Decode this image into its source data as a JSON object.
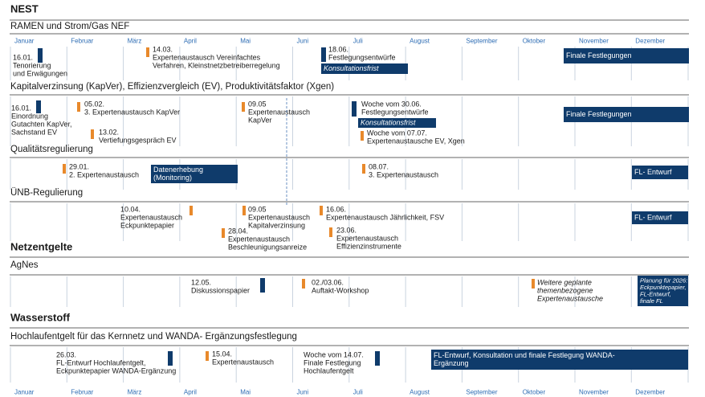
{
  "months": [
    "Januar",
    "Februar",
    "März",
    "April",
    "Mai",
    "Juni",
    "Juli",
    "August",
    "September",
    "Oktober",
    "November",
    "Dezember"
  ],
  "sections": [
    {
      "title": "NEST",
      "groups": [
        {
          "title": "RAMEN und Strom/Gas NEF",
          "items": [
            {
              "lines": [
                "16.01.",
                "Tenorierung",
                "und Erwägungen"
              ]
            },
            {
              "lines": [
                "14.03.",
                "Expertenaustausch Vereinfachtes",
                "Verfahren, Kleinstnetzbetreiberregelung"
              ]
            },
            {
              "lines": [
                "18.06.",
                "Festlegungsentwürfe"
              ]
            }
          ],
          "boxes": [
            {
              "lines": [
                "Konsultationsfrist"
              ]
            },
            {
              "lines": [
                "Finale Festlegungen"
              ]
            }
          ]
        },
        {
          "title": "Kapitalverzinsung  (KapVer), Effizienzvergleich  (EV), Produktivitätsfaktor (Xgen)",
          "items": [
            {
              "lines": [
                "16.01.",
                "Einordnung",
                "Gutachten KapVer,",
                "Sachstand EV"
              ]
            },
            {
              "lines": [
                "05.02.",
                "3. Expertenaustausch KapVer"
              ]
            },
            {
              "lines": [
                "13.02.",
                "Vertiefungsgespräch EV"
              ]
            },
            {
              "lines": [
                "09.05",
                "Expertenaustausch",
                "KapVer"
              ]
            },
            {
              "lines": [
                "Woche vom 30.06.",
                "Festlegungsentwürfe"
              ]
            },
            {
              "lines": [
                "Woche vom 07.07.",
                "Expertenaustausche EV, Xgen"
              ]
            }
          ],
          "boxes": [
            {
              "lines": [
                "Konsultationsfrist"
              ]
            },
            {
              "lines": [
                "Finale Festlegungen"
              ]
            }
          ]
        },
        {
          "title": "Qualitätsregulierung",
          "items": [
            {
              "lines": [
                "29.01.",
                "2. Expertenaustausch"
              ]
            },
            {
              "lines": [
                "08.07.",
                "3. Expertenaustausch"
              ]
            }
          ],
          "boxes": [
            {
              "lines": [
                "Datenerhebung",
                "(Monitoring)"
              ]
            },
            {
              "lines": [
                "FL- Entwurf"
              ]
            }
          ]
        },
        {
          "title": "ÜNB-Regulierung",
          "items": [
            {
              "lines": [
                "10.04.",
                "Expertenaustausch",
                "Eckpunktepapier"
              ]
            },
            {
              "lines": [
                "09.05",
                "Expertenaustausch",
                "Kapitalverzinsung"
              ]
            },
            {
              "lines": [
                "28.04.",
                "Expertenaustausch",
                "Beschleunigungsanreize"
              ]
            },
            {
              "lines": [
                "16.06.",
                "Expertenaustausch Jährlichkeit, FSV"
              ]
            },
            {
              "lines": [
                "23.06.",
                "Expertenaustausch",
                "Effizienzinstrumente"
              ]
            }
          ],
          "boxes": [
            {
              "lines": [
                "FL- Entwurf"
              ]
            }
          ]
        }
      ]
    },
    {
      "title": "Netzentgelte",
      "groups": [
        {
          "title": "AgNes",
          "items": [
            {
              "lines": [
                "12.05.",
                "Diskussionspapier"
              ]
            },
            {
              "lines": [
                "02./03.06.",
                "Auftakt-Workshop"
              ]
            },
            {
              "lines": [
                "Weitere geplante",
                "themenbezogene",
                "Expertenaustausche"
              ]
            }
          ],
          "boxes": [
            {
              "lines": [
                "Planung für 2026:",
                "Eckpunktepapier,",
                "FL-Entwurf,",
                "finale FL"
              ]
            }
          ]
        }
      ]
    },
    {
      "title": "Wasserstoff",
      "groups": [
        {
          "title": "Hochlaufentgelt für das Kernnetz und WANDA- Ergänzungsfestlegung",
          "items": [
            {
              "lines": [
                "26.03.",
                "FL-Entwurf Hochlaufentgelt,",
                "Eckpunktepapier  WANDA-Ergänzung"
              ]
            },
            {
              "lines": [
                "15.04.",
                "Expertenaustausch"
              ]
            },
            {
              "lines": [
                "Woche vom 14.07.",
                "Finale Festlegung",
                "Hochlaufentgelt"
              ]
            }
          ],
          "boxes": [
            {
              "lines": [
                "FL-Entwurf, Konsultation und finale Festlegung WANDA-",
                "Ergänzung"
              ]
            }
          ]
        }
      ]
    }
  ]
}
